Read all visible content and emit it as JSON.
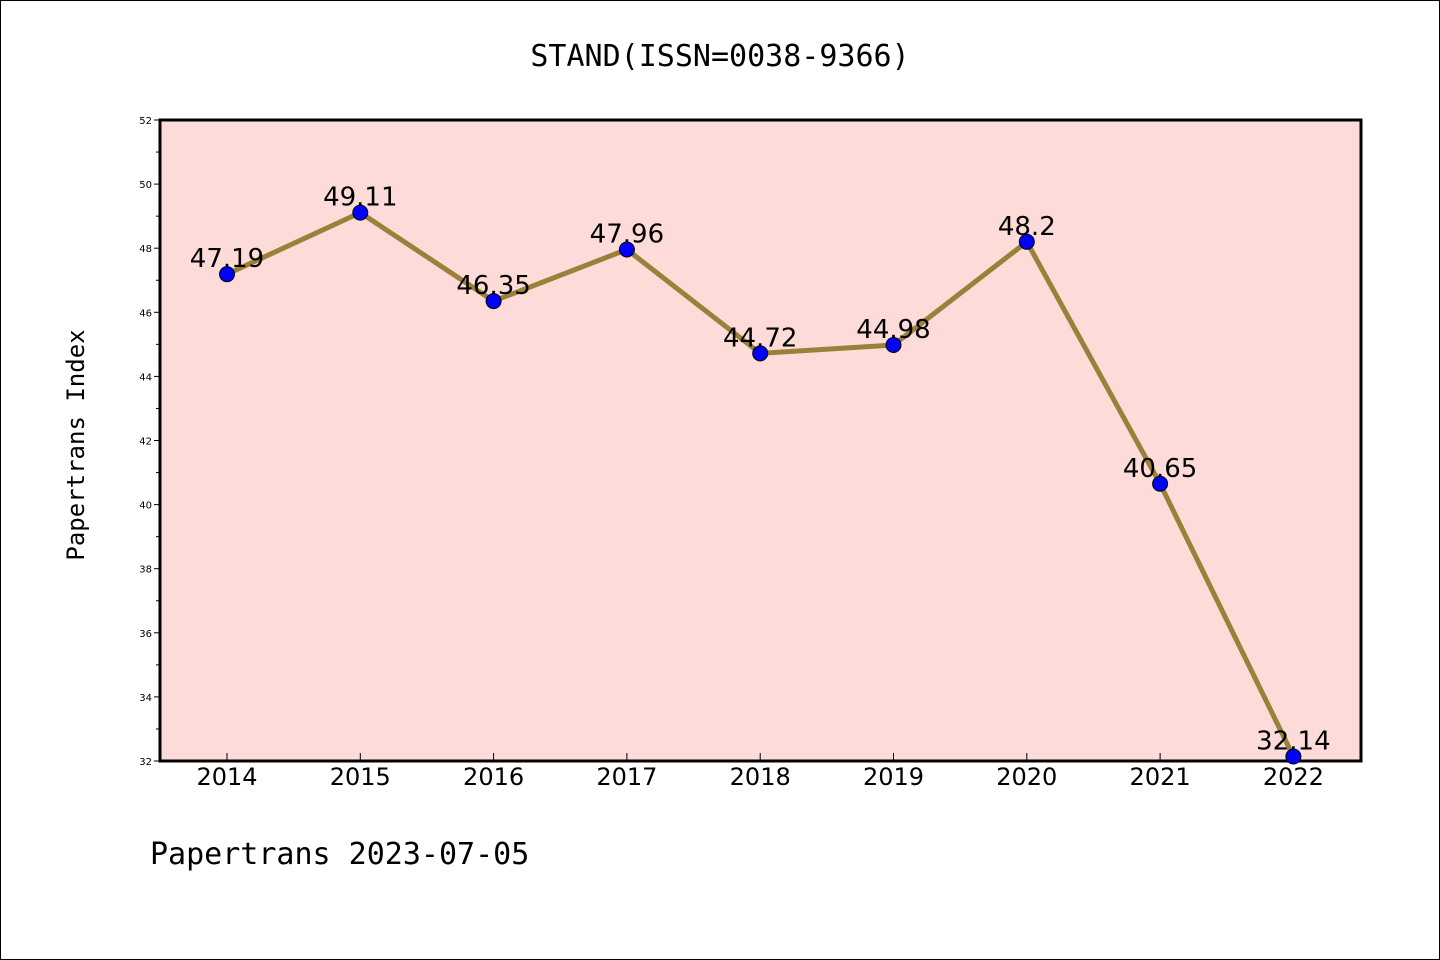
{
  "chart_data": {
    "type": "line",
    "title": "STAND(ISSN=0038-9366)",
    "ylabel": "Papertrans Index",
    "xlabel": "",
    "footer": "Papertrans 2023-07-05",
    "categories": [
      "2014",
      "2015",
      "2016",
      "2017",
      "2018",
      "2019",
      "2020",
      "2021",
      "2022"
    ],
    "values": [
      47.19,
      49.11,
      46.35,
      47.96,
      44.72,
      44.98,
      48.2,
      40.65,
      32.14
    ],
    "data_labels": [
      "47.19",
      "49.11",
      "46.35",
      "47.96",
      "44.72",
      "44.98",
      "48.2",
      "40.65",
      "32.14"
    ],
    "yticks": [
      "32",
      "34",
      "36",
      "38",
      "40",
      "42",
      "44",
      "46",
      "48",
      "50",
      "52"
    ],
    "ylim": [
      32,
      52
    ],
    "grid": false,
    "colors": {
      "plot_background": "#fddbd9",
      "line": "#9a8038",
      "marker": "#0000ff",
      "axis": "#000000"
    }
  }
}
